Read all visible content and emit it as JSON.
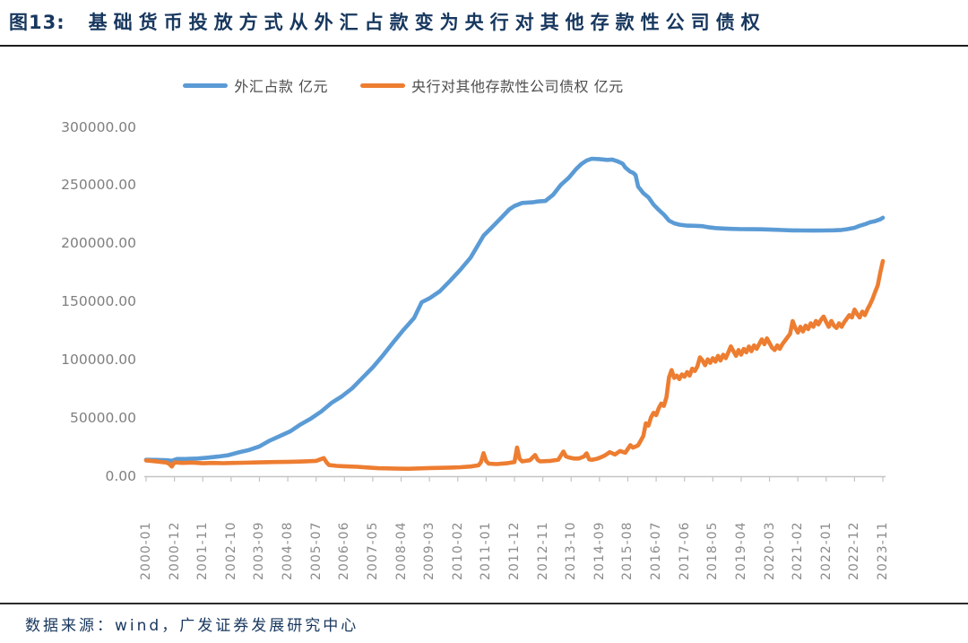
{
  "header": {
    "figure_label": "图13:",
    "title": "基础货币投放方式从外汇占款变为央行对其他存款性公司债权"
  },
  "footer": {
    "source_note": "数据来源：wind，广发证券发展研究中心"
  },
  "colors": {
    "fx_series": "#5B9BD5",
    "pboc_series": "#ED7D31",
    "title_text": "#17375E",
    "axis_line": "#c4c4c4",
    "axis_label_text": "#8c8c8c",
    "divider": "#1c1c1c"
  },
  "chart_data": {
    "type": "line",
    "title": "",
    "xlabel": "",
    "ylabel": "",
    "grid": false,
    "legend_position": "top",
    "x_unit": "month",
    "x_start": "2000-01",
    "x_end": "2023-11",
    "x_month_count": 287,
    "x_tick_month_step": 11,
    "x_tick_labels": [
      "2000-01",
      "2000-12",
      "2001-11",
      "2002-10",
      "2003-09",
      "2004-08",
      "2005-07",
      "2006-06",
      "2007-05",
      "2008-04",
      "2009-03",
      "2010-02",
      "2011-01",
      "2011-12",
      "2012-11",
      "2013-10",
      "2014-09",
      "2015-08",
      "2016-07",
      "2017-06",
      "2018-05",
      "2019-04",
      "2020-03",
      "2021-02",
      "2022-01",
      "2022-12",
      "2023-11"
    ],
    "y_axis": {
      "min": 0,
      "max": 300000,
      "step": 50000,
      "tick_labels": [
        "300000.00",
        "250000.00",
        "200000.00",
        "150000.00",
        "100000.00",
        "50000.00",
        "0.00"
      ]
    },
    "series": [
      {
        "series_id": "fx-reserves",
        "name": "外汇占款 亿元",
        "color": "#5B9BD5",
        "keypoints": [
          [
            0,
            14100
          ],
          [
            4,
            14000
          ],
          [
            8,
            13700
          ],
          [
            10,
            13300
          ],
          [
            12,
            14800
          ],
          [
            16,
            14900
          ],
          [
            20,
            15200
          ],
          [
            24,
            16000
          ],
          [
            28,
            16900
          ],
          [
            32,
            18100
          ],
          [
            36,
            20500
          ],
          [
            40,
            22600
          ],
          [
            44,
            25600
          ],
          [
            48,
            30600
          ],
          [
            52,
            34600
          ],
          [
            56,
            38600
          ],
          [
            60,
            44600
          ],
          [
            64,
            49600
          ],
          [
            68,
            55600
          ],
          [
            72,
            63100
          ],
          [
            76,
            68600
          ],
          [
            80,
            75600
          ],
          [
            84,
            84600
          ],
          [
            88,
            93600
          ],
          [
            92,
            104000
          ],
          [
            96,
            115200
          ],
          [
            100,
            126000
          ],
          [
            104,
            136000
          ],
          [
            107,
            149600
          ],
          [
            110,
            153000
          ],
          [
            114,
            159000
          ],
          [
            118,
            168000
          ],
          [
            122,
            177500
          ],
          [
            126,
            188000
          ],
          [
            131,
            206800
          ],
          [
            134,
            213500
          ],
          [
            138,
            222500
          ],
          [
            141,
            229500
          ],
          [
            143,
            232400
          ],
          [
            146,
            235000
          ],
          [
            150,
            235500
          ],
          [
            152,
            236200
          ],
          [
            155,
            236700
          ],
          [
            158,
            242000
          ],
          [
            161,
            250500
          ],
          [
            164,
            256500
          ],
          [
            167,
            264300
          ],
          [
            169,
            268500
          ],
          [
            171,
            271500
          ],
          [
            173,
            273000
          ],
          [
            176,
            272700
          ],
          [
            179,
            272000
          ],
          [
            181,
            272300
          ],
          [
            183,
            270800
          ],
          [
            185,
            268800
          ],
          [
            186,
            265500
          ],
          [
            188,
            261800
          ],
          [
            189,
            261000
          ],
          [
            190,
            259000
          ],
          [
            191,
            249000
          ],
          [
            193,
            243500
          ],
          [
            195,
            239800
          ],
          [
            197,
            233500
          ],
          [
            199,
            229000
          ],
          [
            201,
            225000
          ],
          [
            203,
            219800
          ],
          [
            205,
            217500
          ],
          [
            207,
            216300
          ],
          [
            210,
            215500
          ],
          [
            213,
            215300
          ],
          [
            216,
            215000
          ],
          [
            218,
            214200
          ],
          [
            221,
            213400
          ],
          [
            224,
            213000
          ],
          [
            227,
            212700
          ],
          [
            231,
            212500
          ],
          [
            235,
            212400
          ],
          [
            239,
            212300
          ],
          [
            243,
            212000
          ],
          [
            247,
            211700
          ],
          [
            251,
            211400
          ],
          [
            255,
            211300
          ],
          [
            259,
            211200
          ],
          [
            263,
            211300
          ],
          [
            267,
            211500
          ],
          [
            270,
            211800
          ],
          [
            272,
            212400
          ],
          [
            275,
            213600
          ],
          [
            277,
            215300
          ],
          [
            279,
            216600
          ],
          [
            281,
            218300
          ],
          [
            283,
            219300
          ],
          [
            285,
            220900
          ],
          [
            286,
            222300
          ]
        ]
      },
      {
        "series_id": "pboc-claims",
        "name": "央行对其他存款性公司债权 亿元",
        "color": "#ED7D31",
        "keypoints": [
          [
            0,
            13600
          ],
          [
            2,
            13200
          ],
          [
            5,
            12500
          ],
          [
            8,
            11700
          ],
          [
            9,
            10500
          ],
          [
            10,
            8300
          ],
          [
            11,
            11900
          ],
          [
            14,
            11400
          ],
          [
            18,
            11700
          ],
          [
            22,
            11100
          ],
          [
            26,
            11400
          ],
          [
            30,
            11200
          ],
          [
            34,
            11400
          ],
          [
            38,
            11600
          ],
          [
            42,
            11800
          ],
          [
            46,
            12000
          ],
          [
            50,
            12200
          ],
          [
            54,
            12300
          ],
          [
            58,
            12500
          ],
          [
            62,
            12800
          ],
          [
            66,
            13200
          ],
          [
            69,
            15600
          ],
          [
            70,
            12000
          ],
          [
            71,
            9600
          ],
          [
            74,
            8900
          ],
          [
            78,
            8400
          ],
          [
            82,
            8100
          ],
          [
            86,
            7500
          ],
          [
            90,
            6900
          ],
          [
            94,
            6700
          ],
          [
            98,
            6500
          ],
          [
            102,
            6400
          ],
          [
            106,
            6700
          ],
          [
            110,
            7000
          ],
          [
            114,
            7200
          ],
          [
            118,
            7400
          ],
          [
            122,
            7700
          ],
          [
            126,
            8300
          ],
          [
            129,
            9300
          ],
          [
            130,
            12000
          ],
          [
            131,
            19800
          ],
          [
            132,
            13000
          ],
          [
            133,
            10800
          ],
          [
            136,
            10400
          ],
          [
            140,
            11100
          ],
          [
            143,
            12200
          ],
          [
            144,
            24700
          ],
          [
            145,
            15000
          ],
          [
            146,
            12700
          ],
          [
            149,
            13700
          ],
          [
            151,
            18200
          ],
          [
            152,
            14000
          ],
          [
            153,
            12700
          ],
          [
            157,
            13200
          ],
          [
            160,
            14200
          ],
          [
            162,
            21200
          ],
          [
            163,
            17000
          ],
          [
            164,
            16200
          ],
          [
            166,
            15200
          ],
          [
            168,
            15200
          ],
          [
            170,
            17000
          ],
          [
            171,
            19700
          ],
          [
            172,
            14500
          ],
          [
            173,
            14000
          ],
          [
            175,
            15000
          ],
          [
            176,
            15700
          ],
          [
            178,
            17700
          ],
          [
            180,
            20700
          ],
          [
            182,
            18700
          ],
          [
            184,
            21700
          ],
          [
            186,
            20200
          ],
          [
            188,
            26700
          ],
          [
            189,
            24500
          ],
          [
            190,
            25500
          ],
          [
            191,
            26600
          ],
          [
            192,
            30500
          ],
          [
            193,
            34500
          ],
          [
            194,
            45500
          ],
          [
            195,
            43500
          ],
          [
            196,
            50500
          ],
          [
            197,
            54500
          ],
          [
            198,
            52500
          ],
          [
            199,
            58500
          ],
          [
            200,
            62500
          ],
          [
            201,
            60500
          ],
          [
            202,
            68000
          ],
          [
            203,
            85000
          ],
          [
            204,
            91200
          ],
          [
            205,
            84500
          ],
          [
            206,
            86500
          ],
          [
            207,
            83500
          ],
          [
            208,
            87500
          ],
          [
            209,
            85500
          ],
          [
            210,
            89500
          ],
          [
            211,
            86500
          ],
          [
            212,
            92500
          ],
          [
            213,
            90500
          ],
          [
            214,
            94500
          ],
          [
            215,
            102200
          ],
          [
            216,
            99500
          ],
          [
            217,
            95500
          ],
          [
            218,
            100500
          ],
          [
            219,
            97500
          ],
          [
            220,
            101500
          ],
          [
            221,
            98500
          ],
          [
            222,
            103500
          ],
          [
            223,
            99500
          ],
          [
            224,
            104500
          ],
          [
            225,
            101500
          ],
          [
            226,
            106500
          ],
          [
            227,
            111600
          ],
          [
            228,
            107500
          ],
          [
            229,
            103500
          ],
          [
            230,
            108500
          ],
          [
            231,
            104500
          ],
          [
            232,
            109500
          ],
          [
            233,
            106500
          ],
          [
            234,
            111500
          ],
          [
            235,
            107500
          ],
          [
            236,
            112500
          ],
          [
            237,
            109500
          ],
          [
            238,
            113500
          ],
          [
            239,
            117700
          ],
          [
            240,
            113500
          ],
          [
            241,
            118500
          ],
          [
            242,
            114500
          ],
          [
            243,
            110500
          ],
          [
            244,
            108500
          ],
          [
            245,
            112500
          ],
          [
            246,
            109500
          ],
          [
            247,
            113500
          ],
          [
            248,
            116500
          ],
          [
            249,
            119500
          ],
          [
            250,
            122500
          ],
          [
            251,
            133400
          ],
          [
            252,
            127500
          ],
          [
            253,
            123500
          ],
          [
            254,
            128500
          ],
          [
            255,
            124500
          ],
          [
            256,
            129500
          ],
          [
            257,
            126500
          ],
          [
            258,
            131500
          ],
          [
            259,
            128500
          ],
          [
            260,
            133500
          ],
          [
            261,
            130500
          ],
          [
            262,
            134500
          ],
          [
            263,
            137300
          ],
          [
            264,
            132500
          ],
          [
            265,
            128500
          ],
          [
            266,
            133500
          ],
          [
            267,
            129500
          ],
          [
            268,
            127500
          ],
          [
            269,
            131500
          ],
          [
            270,
            128500
          ],
          [
            271,
            132500
          ],
          [
            272,
            135500
          ],
          [
            273,
            138500
          ],
          [
            274,
            136500
          ],
          [
            275,
            143300
          ],
          [
            276,
            139500
          ],
          [
            277,
            136500
          ],
          [
            278,
            141500
          ],
          [
            279,
            138500
          ],
          [
            280,
            143500
          ],
          [
            281,
            147500
          ],
          [
            282,
            152500
          ],
          [
            283,
            158500
          ],
          [
            284,
            164000
          ],
          [
            285,
            175000
          ],
          [
            286,
            185000
          ]
        ]
      }
    ]
  }
}
